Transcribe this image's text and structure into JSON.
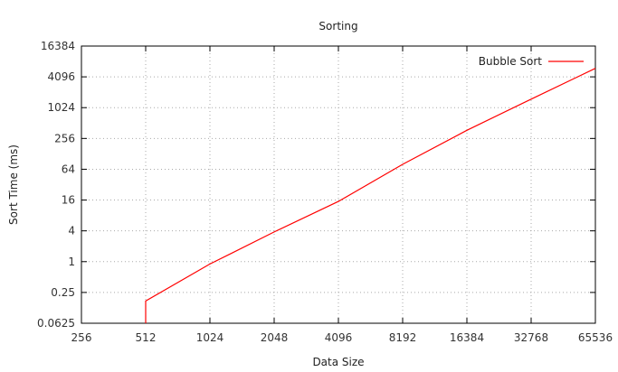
{
  "chart_data": {
    "type": "line",
    "title": "Sorting",
    "xlabel": "Data Size",
    "ylabel": "Sort Time (ms)",
    "x_scale": "log2",
    "y_scale": "log2",
    "xlim": [
      256,
      65536
    ],
    "ylim": [
      0.0625,
      16384
    ],
    "x_ticks": [
      256,
      512,
      1024,
      2048,
      4096,
      8192,
      16384,
      32768,
      65536
    ],
    "x_tick_labels": [
      "256",
      "512",
      "1024",
      "2048",
      "4096",
      "8192",
      "16384",
      "32768",
      "65536"
    ],
    "y_ticks": [
      0.0625,
      0.25,
      1,
      4,
      16,
      64,
      256,
      1024,
      4096,
      16384
    ],
    "y_tick_labels": [
      "0.0625",
      "0.25",
      "1",
      "4",
      "16",
      "64",
      "256",
      "1024",
      "4096",
      "16384"
    ],
    "grid": true,
    "legend_position": "top-right",
    "series": [
      {
        "name": "Bubble Sort",
        "color": "#ff0000",
        "x": [
          512,
          512,
          1024,
          2048,
          4096,
          8192,
          16384,
          32768,
          65536
        ],
        "y": [
          0.0625,
          0.17,
          0.9,
          3.8,
          15,
          80,
          370,
          1500,
          6000
        ]
      }
    ]
  }
}
